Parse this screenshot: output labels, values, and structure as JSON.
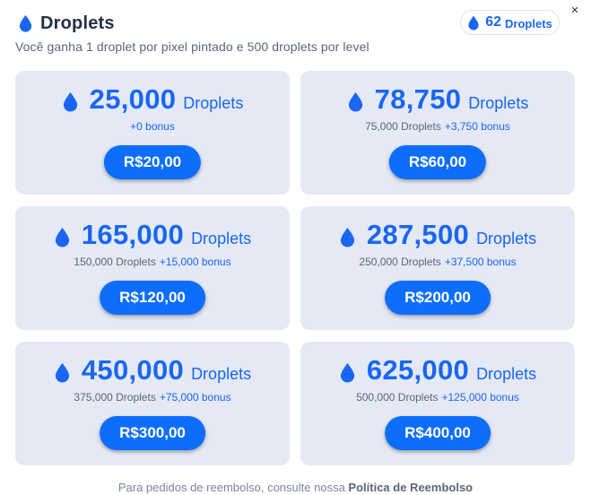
{
  "header": {
    "title": "Droplets",
    "close_label": "×"
  },
  "balance": {
    "count": "62",
    "unit": "Droplets"
  },
  "subtitle": "Você ganha 1 droplet por pixel pintado e 500 droplets por level",
  "packages": [
    {
      "amount": "25,000",
      "unit": "Droplets",
      "base": "",
      "bonus": "+0 bonus",
      "price": "R$20,00"
    },
    {
      "amount": "78,750",
      "unit": "Droplets",
      "base": "75,000 Droplets",
      "bonus": "+3,750 bonus",
      "price": "R$60,00"
    },
    {
      "amount": "165,000",
      "unit": "Droplets",
      "base": "150,000 Droplets",
      "bonus": "+15,000 bonus",
      "price": "R$120,00"
    },
    {
      "amount": "287,500",
      "unit": "Droplets",
      "base": "250,000 Droplets",
      "bonus": "+37,500 bonus",
      "price": "R$200,00"
    },
    {
      "amount": "450,000",
      "unit": "Droplets",
      "base": "375,000 Droplets",
      "bonus": "+75,000 bonus",
      "price": "R$300,00"
    },
    {
      "amount": "625,000",
      "unit": "Droplets",
      "base": "500,000 Droplets",
      "bonus": "+125,000 bonus",
      "price": "R$400,00"
    }
  ],
  "footer": {
    "text": "Para pedidos de reembolso, consulte nossa",
    "link": "Política de Reembolso"
  },
  "icons": {
    "droplet": "droplet-icon",
    "close": "close-icon"
  },
  "colors": {
    "accent": "#1a66f2",
    "button": "#0d6efd",
    "card_bg": "#e4e9f5",
    "title": "#243043"
  }
}
